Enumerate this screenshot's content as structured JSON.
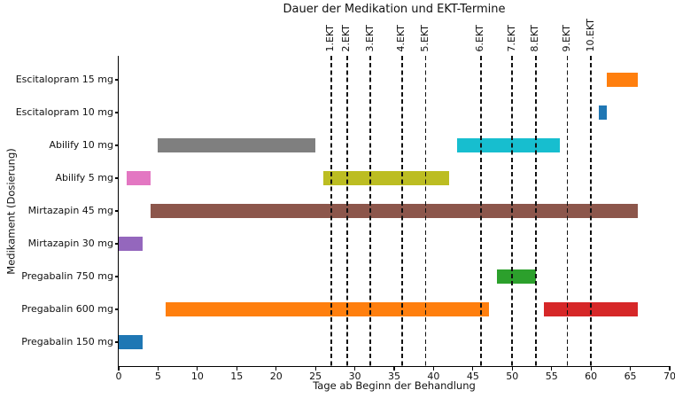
{
  "chart_data": {
    "type": "bar",
    "variant": "horizontal-broken-bar-gantt",
    "title": "Dauer der Medikation und EKT-Termine",
    "xlabel": "Tage ab Beginn der Behandlung",
    "ylabel": "Medikament (Dosierung)",
    "xlim": [
      0,
      70
    ],
    "xticks": [
      0,
      5,
      10,
      15,
      20,
      25,
      30,
      35,
      40,
      45,
      50,
      55,
      60,
      65,
      70
    ],
    "grid": false,
    "legend": "none",
    "categories": [
      "Escitalopram 15 mg",
      "Escitalopram 10 mg",
      "Abilify 10 mg",
      "Abilify 5 mg",
      "Mirtazapin 45 mg",
      "Mirtazapin 30 mg",
      "Pregabalin 750 mg",
      "Pregabalin 600 mg",
      "Pregabalin 150 mg"
    ],
    "bars": [
      {
        "category": "Pregabalin 150 mg",
        "start": 0,
        "end": 3,
        "color": "#1f77b4"
      },
      {
        "category": "Pregabalin 600 mg",
        "start": 6,
        "end": 47,
        "color": "#ff7f0e"
      },
      {
        "category": "Pregabalin 750 mg",
        "start": 48,
        "end": 53,
        "color": "#2ca02c"
      },
      {
        "category": "Pregabalin 600 mg",
        "start": 54,
        "end": 66,
        "color": "#d62728"
      },
      {
        "category": "Mirtazapin 30 mg",
        "start": 0,
        "end": 3,
        "color": "#9467bd"
      },
      {
        "category": "Mirtazapin 45 mg",
        "start": 4,
        "end": 66,
        "color": "#8c564b"
      },
      {
        "category": "Abilify 5 mg",
        "start": 1,
        "end": 4,
        "color": "#e377c2"
      },
      {
        "category": "Abilify 10 mg",
        "start": 5,
        "end": 25,
        "color": "#7f7f7f"
      },
      {
        "category": "Abilify 5 mg",
        "start": 26,
        "end": 42,
        "color": "#bcbd22"
      },
      {
        "category": "Abilify 10 mg",
        "start": 43,
        "end": 56,
        "color": "#17becf"
      },
      {
        "category": "Escitalopram 10 mg",
        "start": 61,
        "end": 62,
        "color": "#1f77b4"
      },
      {
        "category": "Escitalopram 15 mg",
        "start": 62,
        "end": 66,
        "color": "#ff7f0e"
      }
    ],
    "events": [
      {
        "label": "1.EKT",
        "day": 27
      },
      {
        "label": "2.EKT",
        "day": 29
      },
      {
        "label": "3.EKT",
        "day": 32
      },
      {
        "label": "4.EKT",
        "day": 36
      },
      {
        "label": "5.EKT",
        "day": 39
      },
      {
        "label": "6.EKT",
        "day": 46
      },
      {
        "label": "7.EKT",
        "day": 50
      },
      {
        "label": "8.EKT",
        "day": 53
      },
      {
        "label": "9.EKT",
        "day": 57
      },
      {
        "label": "10.EKT",
        "day": 60
      }
    ],
    "event_line_style": {
      "color": "#111111",
      "dash": "dashed"
    }
  }
}
